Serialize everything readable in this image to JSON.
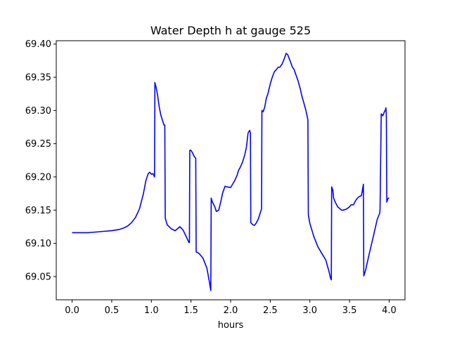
{
  "chart_data": {
    "type": "line",
    "title": "Water Depth h at gauge 525",
    "xlabel": "hours",
    "ylabel": "",
    "xlim": [
      -0.2,
      4.2
    ],
    "ylim": [
      69.015,
      69.405
    ],
    "xticks": [
      0.0,
      0.5,
      1.0,
      1.5,
      2.0,
      2.5,
      3.0,
      3.5,
      4.0
    ],
    "xtick_labels": [
      "0.0",
      "0.5",
      "1.0",
      "1.5",
      "2.0",
      "2.5",
      "3.0",
      "3.5",
      "4.0"
    ],
    "yticks": [
      69.05,
      69.1,
      69.15,
      69.2,
      69.25,
      69.3,
      69.35,
      69.4
    ],
    "ytick_labels": [
      "69.05",
      "69.10",
      "69.15",
      "69.20",
      "69.25",
      "69.30",
      "69.35",
      "69.40"
    ],
    "grid": false,
    "series": [
      {
        "color": "#0000ff",
        "x": [
          0.0,
          0.1,
          0.2,
          0.3,
          0.4,
          0.5,
          0.55,
          0.6,
          0.65,
          0.7,
          0.75,
          0.8,
          0.85,
          0.9,
          0.93,
          0.96,
          0.98,
          1.0,
          1.02,
          1.04,
          1.045,
          1.06,
          1.08,
          1.1,
          1.12,
          1.14,
          1.16,
          1.17,
          1.175,
          1.2,
          1.25,
          1.3,
          1.33,
          1.36,
          1.4,
          1.44,
          1.47,
          1.48,
          1.485,
          1.5,
          1.52,
          1.54,
          1.56,
          1.565,
          1.6,
          1.65,
          1.7,
          1.73,
          1.75,
          1.755,
          1.77,
          1.78,
          1.8,
          1.82,
          1.85,
          1.88,
          1.9,
          1.93,
          1.95,
          2.0,
          2.05,
          2.08,
          2.1,
          2.12,
          2.15,
          2.18,
          2.2,
          2.22,
          2.24,
          2.25,
          2.255,
          2.28,
          2.3,
          2.32,
          2.35,
          2.38,
          2.39,
          2.395,
          2.41,
          2.43,
          2.45,
          2.47,
          2.5,
          2.52,
          2.55,
          2.58,
          2.6,
          2.62,
          2.65,
          2.68,
          2.7,
          2.72,
          2.75,
          2.78,
          2.8,
          2.82,
          2.85,
          2.88,
          2.9,
          2.92,
          2.95,
          2.975,
          2.98,
          3.0,
          3.05,
          3.1,
          3.15,
          3.2,
          3.24,
          3.26,
          3.27,
          3.275,
          3.29,
          3.3,
          3.32,
          3.35,
          3.38,
          3.4,
          3.42,
          3.45,
          3.48,
          3.5,
          3.52,
          3.55,
          3.58,
          3.6,
          3.62,
          3.65,
          3.66,
          3.675,
          3.68,
          3.7,
          3.75,
          3.8,
          3.85,
          3.88,
          3.885,
          3.9,
          3.92,
          3.94,
          3.95,
          3.96,
          3.965,
          3.97,
          3.98,
          3.99,
          4.0
        ],
        "y": [
          69.116,
          69.116,
          69.116,
          69.117,
          69.118,
          69.119,
          69.12,
          69.121,
          69.123,
          69.126,
          69.131,
          69.139,
          69.152,
          69.175,
          69.194,
          69.205,
          69.207,
          69.204,
          69.205,
          69.2,
          69.342,
          69.335,
          69.322,
          69.305,
          69.293,
          69.285,
          69.278,
          69.278,
          69.138,
          69.128,
          69.122,
          69.119,
          69.122,
          69.125,
          69.12,
          69.11,
          69.102,
          69.101,
          69.24,
          69.24,
          69.236,
          69.231,
          69.228,
          69.087,
          69.085,
          69.078,
          69.063,
          69.043,
          69.029,
          69.168,
          69.162,
          69.16,
          69.155,
          69.148,
          69.15,
          69.165,
          69.176,
          69.186,
          69.185,
          69.184,
          69.194,
          69.202,
          69.21,
          69.214,
          69.222,
          69.234,
          69.245,
          69.266,
          69.27,
          69.266,
          69.131,
          69.128,
          69.127,
          69.13,
          69.137,
          69.148,
          69.152,
          69.3,
          69.298,
          69.305,
          69.318,
          69.325,
          69.34,
          69.348,
          69.358,
          69.362,
          69.365,
          69.365,
          69.37,
          69.379,
          69.386,
          69.384,
          69.375,
          69.365,
          69.362,
          69.355,
          69.345,
          69.332,
          69.321,
          69.313,
          69.3,
          69.286,
          69.143,
          69.13,
          69.11,
          69.095,
          69.085,
          69.075,
          69.058,
          69.048,
          69.045,
          69.185,
          69.18,
          69.168,
          69.162,
          69.155,
          69.152,
          69.15,
          69.15,
          69.151,
          69.153,
          69.155,
          69.158,
          69.158,
          69.165,
          69.168,
          69.17,
          69.172,
          69.178,
          69.189,
          69.051,
          69.058,
          69.085,
          69.11,
          69.136,
          69.145,
          69.15,
          69.295,
          69.292,
          69.298,
          69.3,
          69.304,
          69.29,
          69.162,
          69.166,
          69.168,
          69.168
        ]
      }
    ]
  }
}
